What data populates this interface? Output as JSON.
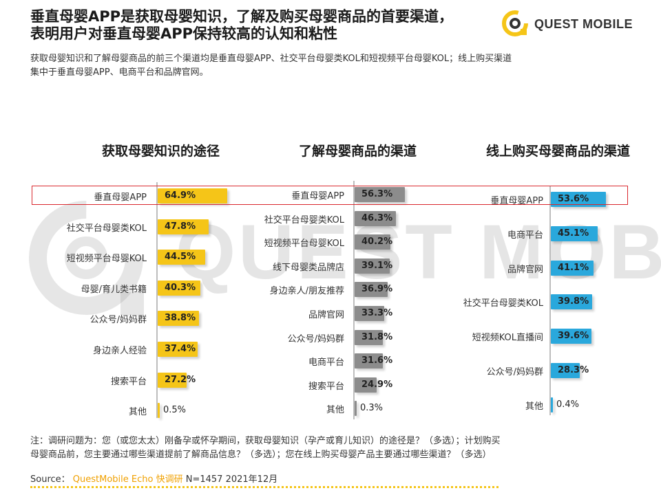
{
  "header": {
    "title_line1": "垂直母婴APP是获取母婴知识，了解及购买母婴商品的首要渠道，",
    "title_line2": "表明用户对垂直母婴APP保持较高的认知和粘性",
    "subtitle_line1": "获取母婴知识和了解母婴商品的前三个渠道均是垂直母婴APP、社交平台母婴类KOL和短视频平台母婴KOL；线上购买渠道",
    "subtitle_line2": "集中于垂直母婴APP、电商平台和品牌官网。",
    "logo_text": "QUEST MOBILE"
  },
  "watermark": {
    "text": "QUEST MOBILE"
  },
  "colors": {
    "yellow": "#f5c518",
    "gray": "#8c8c8c",
    "blue": "#2aa8dc",
    "highlight": "#d9262c"
  },
  "chart_data": [
    {
      "type": "bar",
      "orientation": "horizontal",
      "title": "获取母婴知识的途径",
      "categories": [
        "垂直母婴APP",
        "社交平台母婴类KOL",
        "短视频平台母婴KOL",
        "母婴/育儿类书籍",
        "公众号/妈妈群",
        "身边亲人经验",
        "搜索平台",
        "其他"
      ],
      "values": [
        64.9,
        47.8,
        44.5,
        40.3,
        38.8,
        37.4,
        27.2,
        0.5
      ],
      "labels": [
        "64.9%",
        "47.8%",
        "44.5%",
        "40.3%",
        "38.8%",
        "37.4%",
        "27.2%",
        "0.5%"
      ],
      "unit": "%",
      "color": "yellow"
    },
    {
      "type": "bar",
      "orientation": "horizontal",
      "title": "了解母婴商品的渠道",
      "categories": [
        "垂直母婴APP",
        "社交平台母婴类KOL",
        "短视频平台母婴KOL",
        "线下母婴类品牌店",
        "身边亲人/朋友推荐",
        "品牌官网",
        "公众号/妈妈群",
        "电商平台",
        "搜索平台",
        "其他"
      ],
      "values": [
        56.3,
        46.3,
        40.2,
        39.1,
        36.9,
        33.3,
        31.8,
        31.6,
        24.9,
        0.3
      ],
      "labels": [
        "56.3%",
        "46.3%",
        "40.2%",
        "39.1%",
        "36.9%",
        "33.3%",
        "31.8%",
        "31.6%",
        "24.9%",
        "0.3%"
      ],
      "unit": "%",
      "color": "gray"
    },
    {
      "type": "bar",
      "orientation": "horizontal",
      "title": "线上购买母婴商品的渠道",
      "categories": [
        "垂直母婴APP",
        "电商平台",
        "品牌官网",
        "社交平台母婴类KOL",
        "短视频KOL直播间",
        "公众号/妈妈群",
        "其他"
      ],
      "values": [
        53.6,
        45.1,
        41.1,
        39.8,
        39.6,
        28.3,
        0.4
      ],
      "labels": [
        "53.6%",
        "45.1%",
        "41.1%",
        "39.8%",
        "39.6%",
        "28.3%",
        "0.4%"
      ],
      "unit": "%",
      "color": "blue"
    }
  ],
  "footer": {
    "note_line1": "注：调研问题为：您（或您太太）刚备孕或怀孕期间，获取母婴知识（孕产或育儿知识）的途径是？（多选）；计划购买",
    "note_line2": "母婴商品前，您主要通过哪些渠道提前了解商品信息？（多选）；您在线上购买母婴产品主要通过哪些渠道？（多选）",
    "source_label": "Source：",
    "source_brand": "QuestMobile Echo 快调研",
    "source_detail": "N=1457 2021年12月"
  }
}
